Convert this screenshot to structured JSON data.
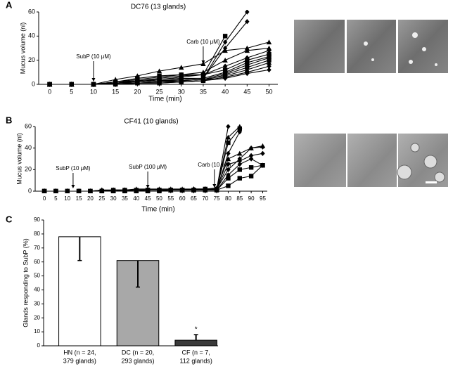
{
  "chart_data": [
    {
      "type": "line",
      "panel": "A",
      "title": "DC76 (13 glands)",
      "x_label": "Time (min)",
      "y_label": "Mucus volume (nl)",
      "x": [
        0,
        5,
        10,
        15,
        20,
        25,
        30,
        35,
        40,
        45,
        50
      ],
      "xlim": [
        -2.5,
        52
      ],
      "xticks": [
        0,
        5,
        10,
        15,
        20,
        25,
        30,
        35,
        40,
        45,
        50
      ],
      "ylim": [
        0,
        60
      ],
      "yticks": [
        0,
        20,
        40,
        60
      ],
      "color": "#000000",
      "annotations": [
        {
          "text": "SubP (10 μM)",
          "x": 10
        },
        {
          "text": "Carb (10 μM)",
          "x": 35
        }
      ],
      "series": [
        {
          "marker": "diamond",
          "values": [
            0,
            0,
            0,
            2,
            3,
            4,
            5,
            5,
            35,
            60,
            null
          ]
        },
        {
          "marker": "diamond",
          "values": [
            0,
            0,
            0,
            1,
            2,
            3,
            4,
            5,
            30,
            52,
            null
          ]
        },
        {
          "marker": "triangle",
          "values": [
            0,
            0,
            0,
            4,
            7,
            11,
            14,
            17,
            28,
            30,
            35
          ]
        },
        {
          "marker": "triangle",
          "values": [
            0,
            0,
            0,
            2,
            4,
            6,
            8,
            10,
            20,
            28,
            30
          ]
        },
        {
          "marker": "diamond",
          "values": [
            0,
            0,
            0,
            1,
            3,
            5,
            7,
            8,
            15,
            22,
            28
          ]
        },
        {
          "marker": "square",
          "values": [
            0,
            0,
            0,
            2,
            5,
            7,
            8,
            8,
            40,
            null,
            null
          ]
        },
        {
          "marker": "square",
          "values": [
            0,
            0,
            0,
            1,
            2,
            4,
            6,
            8,
            12,
            20,
            25
          ]
        },
        {
          "marker": "square",
          "values": [
            0,
            0,
            0,
            1,
            2,
            3,
            4,
            5,
            10,
            18,
            23
          ]
        },
        {
          "marker": "diamond",
          "values": [
            0,
            0,
            0,
            0,
            1,
            2,
            3,
            4,
            9,
            16,
            22
          ]
        },
        {
          "marker": "square",
          "values": [
            0,
            0,
            0,
            0,
            1,
            1,
            2,
            3,
            8,
            14,
            20
          ]
        },
        {
          "marker": "triangle",
          "values": [
            0,
            0,
            0,
            1,
            2,
            3,
            3,
            4,
            7,
            12,
            18
          ]
        },
        {
          "marker": "diamond",
          "values": [
            0,
            0,
            0,
            0,
            1,
            1,
            2,
            3,
            6,
            10,
            15
          ]
        },
        {
          "marker": "diamond",
          "values": [
            0,
            0,
            0,
            1,
            1,
            2,
            2,
            3,
            5,
            9,
            12
          ]
        }
      ]
    },
    {
      "type": "line",
      "panel": "B",
      "title": "CF41 (10 glands)",
      "x_label": "Time (min)",
      "y_label": "Mucus volume (nl)",
      "x": [
        0,
        5,
        10,
        15,
        20,
        25,
        30,
        35,
        40,
        45,
        50,
        55,
        60,
        65,
        70,
        75,
        80,
        85,
        90,
        95
      ],
      "xlim": [
        -4,
        97
      ],
      "xticks": [
        0,
        5,
        10,
        15,
        20,
        25,
        30,
        35,
        40,
        45,
        50,
        55,
        60,
        65,
        70,
        75,
        80,
        85,
        90,
        95
      ],
      "ylim": [
        0,
        60
      ],
      "yticks": [
        0,
        20,
        40,
        60
      ],
      "color": "#000000",
      "annotations": [
        {
          "text": "SubP (10 μM)",
          "x": 12.5
        },
        {
          "text": "SubP (100 μM)",
          "x": 45
        },
        {
          "text": "Carb (10 μM)",
          "x": 74
        }
      ],
      "series": [
        {
          "marker": "diamond",
          "values": [
            0,
            0,
            0,
            0,
            0,
            1,
            1,
            1,
            1,
            1,
            1,
            1,
            1,
            2,
            2,
            2,
            60,
            null,
            null,
            null
          ]
        },
        {
          "marker": "triangle",
          "values": [
            0,
            0,
            0,
            0,
            0,
            1,
            1,
            1,
            2,
            2,
            2,
            2,
            2,
            2,
            2,
            2,
            50,
            60,
            null,
            null
          ]
        },
        {
          "marker": "square",
          "values": [
            0,
            0,
            0,
            0,
            0,
            0,
            1,
            1,
            1,
            1,
            1,
            1,
            1,
            1,
            2,
            2,
            45,
            58,
            null,
            null
          ]
        },
        {
          "marker": "diamond",
          "values": [
            0,
            0,
            0,
            0,
            0,
            0,
            1,
            1,
            1,
            1,
            1,
            1,
            1,
            1,
            1,
            1,
            35,
            55,
            null,
            null
          ]
        },
        {
          "marker": "triangle",
          "values": [
            0,
            0,
            0,
            0,
            0,
            1,
            1,
            1,
            1,
            1,
            1,
            1,
            1,
            2,
            2,
            3,
            30,
            35,
            40,
            42
          ]
        },
        {
          "marker": "diamond",
          "values": [
            0,
            0,
            0,
            0,
            0,
            0,
            1,
            1,
            1,
            1,
            1,
            1,
            1,
            1,
            2,
            2,
            20,
            30,
            40,
            41
          ]
        },
        {
          "marker": "diamond",
          "values": [
            0,
            0,
            0,
            0,
            0,
            0,
            0,
            1,
            1,
            1,
            1,
            1,
            1,
            1,
            1,
            2,
            25,
            28,
            33,
            35
          ]
        },
        {
          "marker": "diamond",
          "values": [
            0,
            0,
            0,
            0,
            0,
            0,
            0,
            0,
            1,
            1,
            1,
            1,
            1,
            1,
            1,
            1,
            15,
            25,
            30,
            24
          ]
        },
        {
          "marker": "square",
          "values": [
            0,
            0,
            0,
            0,
            0,
            0,
            0,
            0,
            0,
            1,
            1,
            1,
            1,
            1,
            1,
            1,
            12,
            20,
            22,
            24
          ]
        },
        {
          "marker": "square",
          "values": [
            0,
            0,
            0,
            0,
            0,
            0,
            0,
            0,
            0,
            0,
            0,
            1,
            1,
            1,
            1,
            1,
            5,
            12,
            14,
            24
          ]
        }
      ]
    },
    {
      "type": "bar",
      "panel": "C",
      "y_label": "Glands responding to SubP (%)",
      "categories": [
        [
          "HN (n = 24,",
          "379 glands)"
        ],
        [
          "DC (n = 20,",
          "293 glands)"
        ],
        [
          "CF (n = 7,",
          "112 glands)"
        ]
      ],
      "values": [
        78,
        61,
        4
      ],
      "errors": [
        17,
        19,
        4
      ],
      "error_side": [
        "down",
        "down",
        "up"
      ],
      "colors": [
        "#ffffff",
        "#a8a8a8",
        "#3a3a3a"
      ],
      "ylim": [
        0,
        90
      ],
      "yticks": [
        0,
        10,
        20,
        30,
        40,
        50,
        60,
        70,
        80,
        90
      ],
      "annotations": [
        {
          "text": "*",
          "category": 2
        }
      ]
    }
  ]
}
